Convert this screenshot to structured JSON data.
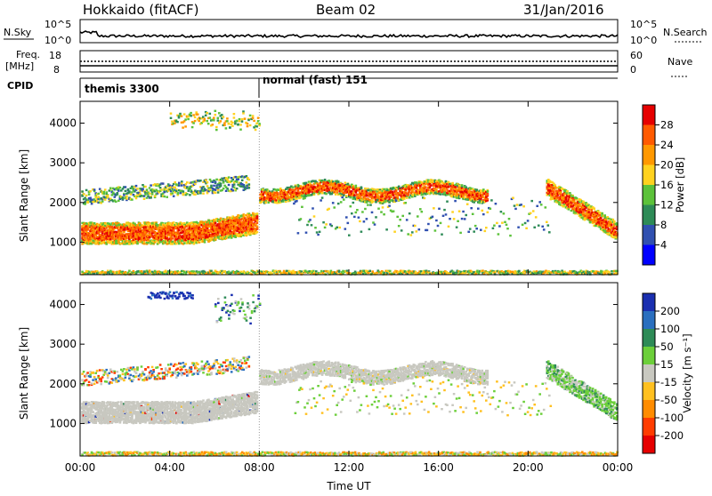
{
  "header": {
    "station": "Hokkaido (fitACF)",
    "beam": "Beam 02",
    "date": "31/Jan/2016"
  },
  "top_panels": {
    "nsky_label": "N.Sky",
    "nsky_ticks": [
      "10^5",
      "10^0"
    ],
    "nsearch_label": "N.Search",
    "nsearch_ticks": [
      "10^5",
      "10^0"
    ],
    "freq_label": "Freq.",
    "freq_unit": "[MHz]",
    "freq_ticks": [
      "18",
      "8"
    ],
    "nave_label": "Nave",
    "nave_ticks": [
      "60",
      "0"
    ],
    "cpid_label": "CPID",
    "cpid_modes": [
      {
        "label": "themis 3300",
        "start_h": 0.0,
        "end_h": 8.0
      },
      {
        "label": "normal (fast) 151",
        "start_h": 8.0,
        "end_h": 24.0
      }
    ]
  },
  "chart_data": [
    {
      "type": "heatmap",
      "name": "power",
      "ylabel": "Slant Range [km]",
      "xlabel": "",
      "x_ticks": [
        "00:00",
        "04:00",
        "08:00",
        "12:00",
        "16:00",
        "20:00",
        "00:00"
      ],
      "y_ticks": [
        1000,
        2000,
        3000,
        4000
      ],
      "xlim_hours": [
        0,
        24
      ],
      "ylim_km": [
        180,
        4550
      ],
      "colorbar": {
        "label": "Power [dB]",
        "ticks": [
          4,
          8,
          12,
          16,
          20,
          24,
          28
        ],
        "range": [
          0,
          32
        ],
        "colors": [
          "#0000ff",
          "#3050b0",
          "#2e8b57",
          "#5cc23a",
          "#ffd21f",
          "#ff9800",
          "#ff5a00",
          "#e60000"
        ]
      }
    },
    {
      "type": "heatmap",
      "name": "velocity",
      "ylabel": "Slant Range [km]",
      "xlabel": "Time UT",
      "x_ticks": [
        "00:00",
        "04:00",
        "08:00",
        "12:00",
        "16:00",
        "20:00",
        "00:00"
      ],
      "y_ticks": [
        1000,
        2000,
        3000,
        4000
      ],
      "xlim_hours": [
        0,
        24
      ],
      "ylim_km": [
        180,
        4550
      ],
      "colorbar": {
        "label": "Velocity [m s⁻¹]",
        "ticks": [
          "200",
          "100",
          "50",
          "15",
          "-15",
          "-50",
          "-100",
          "-200"
        ],
        "colors": [
          "#1a2fb0",
          "#2a6fbf",
          "#2e8b57",
          "#6ccf3a",
          "#c8c8c0",
          "#ffc020",
          "#ff8c00",
          "#ff3c00",
          "#e60000"
        ]
      }
    }
  ]
}
